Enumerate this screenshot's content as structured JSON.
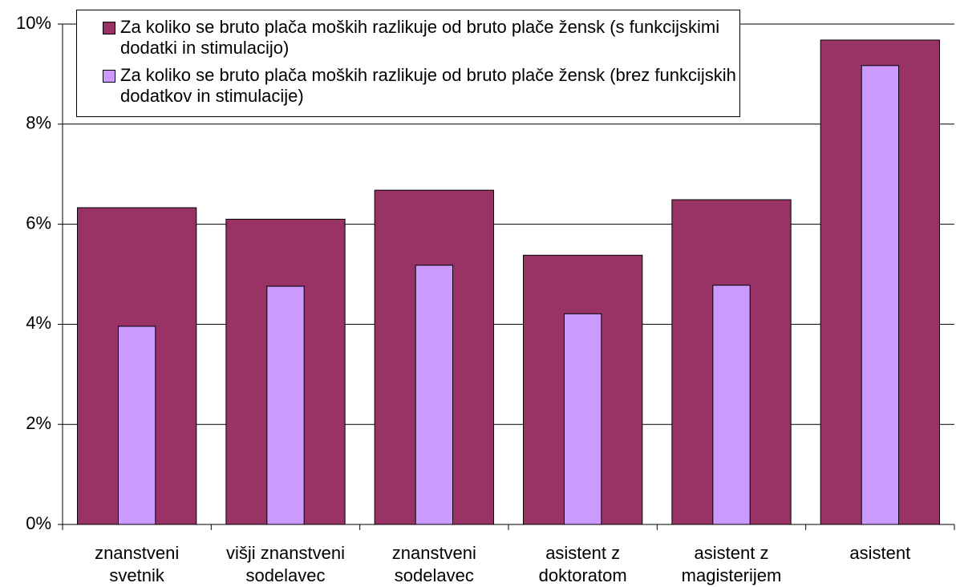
{
  "chart_data": {
    "type": "bar",
    "categories": [
      "znanstveni svetnik",
      "višji znanstveni sodelavec",
      "znanstveni sodelavec",
      "asistent z doktoratom",
      "asistent z magisterijem",
      "asistent"
    ],
    "series": [
      {
        "name": "Za koliko se bruto plača moških razlikuje od bruto plače žensk (s funkcijskimi dodatki in stimulacijo)",
        "color": "#993366",
        "values": [
          6.33,
          6.1,
          6.68,
          5.38,
          6.49,
          9.68
        ]
      },
      {
        "name": "Za koliko se bruto plača moških razlikuje od bruto plače žensk (brez funkcijskih dodatkov in stimulacije)",
        "color": "#CC99FF",
        "values": [
          3.96,
          4.76,
          5.18,
          4.21,
          4.78,
          9.17
        ]
      }
    ],
    "ylim": [
      0,
      10
    ],
    "yticks": [
      {
        "value": 0,
        "label": "0%"
      },
      {
        "value": 2,
        "label": "2%"
      },
      {
        "value": 4,
        "label": "4%"
      },
      {
        "value": 6,
        "label": "6%"
      },
      {
        "value": 8,
        "label": "8%"
      },
      {
        "value": 10,
        "label": "10%"
      }
    ],
    "grid": true,
    "legend": "top"
  }
}
